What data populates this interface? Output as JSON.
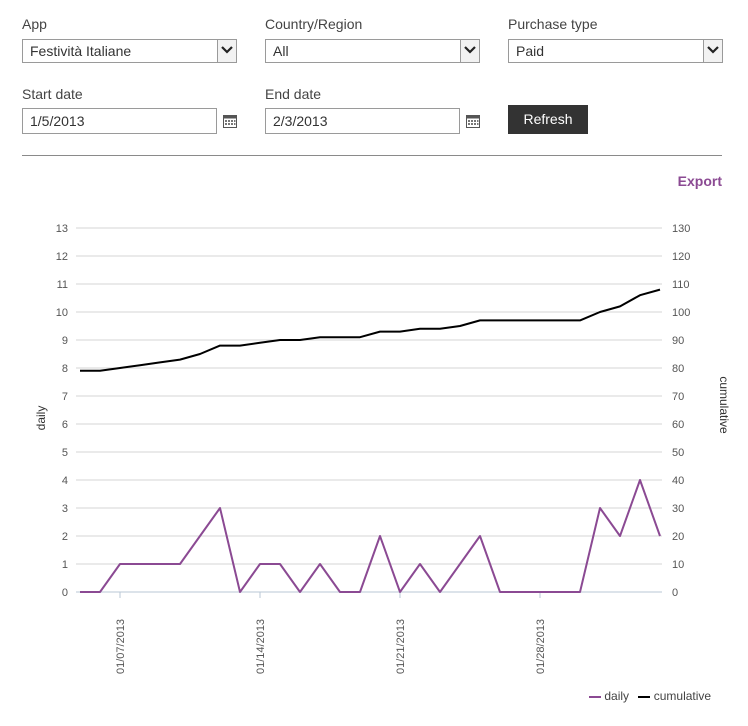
{
  "filters": {
    "app": {
      "label": "App",
      "value": "Festività Italiane"
    },
    "country": {
      "label": "Country/Region",
      "value": "All"
    },
    "purchase_type": {
      "label": "Purchase type",
      "value": "Paid"
    },
    "start_date": {
      "label": "Start date",
      "value": "1/5/2013"
    },
    "end_date": {
      "label": "End date",
      "value": "2/3/2013"
    },
    "refresh_label": "Refresh"
  },
  "export_label": "Export",
  "chart_data": {
    "type": "line",
    "x": [
      "2013-01-05",
      "2013-01-06",
      "2013-01-07",
      "2013-01-08",
      "2013-01-09",
      "2013-01-10",
      "2013-01-11",
      "2013-01-12",
      "2013-01-13",
      "2013-01-14",
      "2013-01-15",
      "2013-01-16",
      "2013-01-17",
      "2013-01-18",
      "2013-01-19",
      "2013-01-20",
      "2013-01-21",
      "2013-01-22",
      "2013-01-23",
      "2013-01-24",
      "2013-01-25",
      "2013-01-26",
      "2013-01-27",
      "2013-01-28",
      "2013-01-29",
      "2013-01-30",
      "2013-01-31",
      "2013-02-01",
      "2013-02-02",
      "2013-02-03"
    ],
    "xtick_labels": [
      "01/07/2013",
      "01/14/2013",
      "01/21/2013",
      "01/28/2013"
    ],
    "series": [
      {
        "name": "daily",
        "axis": "left",
        "color": "#8b4a93",
        "values": [
          0,
          0,
          1,
          1,
          1,
          1,
          2,
          3,
          0,
          1,
          1,
          0,
          1,
          0,
          0,
          2,
          0,
          1,
          0,
          1,
          2,
          0,
          0,
          0,
          0,
          0,
          3,
          2,
          4,
          2
        ]
      },
      {
        "name": "cumulative",
        "axis": "right",
        "color": "#000000",
        "values": [
          79,
          79,
          80,
          81,
          82,
          83,
          85,
          88,
          88,
          89,
          90,
          90,
          91,
          91,
          91,
          93,
          93,
          94,
          94,
          95,
          97,
          97,
          97,
          97,
          97,
          97,
          100,
          102,
          106,
          108
        ]
      }
    ],
    "ylabel": "daily",
    "y2label": "cumulative",
    "ylim": [
      0,
      13
    ],
    "y2lim": [
      0,
      130
    ],
    "yticks": [
      "0",
      "1",
      "2",
      "3",
      "4",
      "5",
      "6",
      "7",
      "8",
      "9",
      "10",
      "11",
      "12",
      "13"
    ],
    "y2ticks": [
      "0",
      "10",
      "20",
      "30",
      "40",
      "50",
      "60",
      "70",
      "80",
      "90",
      "100",
      "110",
      "120",
      "130"
    ],
    "grid": true,
    "legend_position": "bottom-right"
  }
}
